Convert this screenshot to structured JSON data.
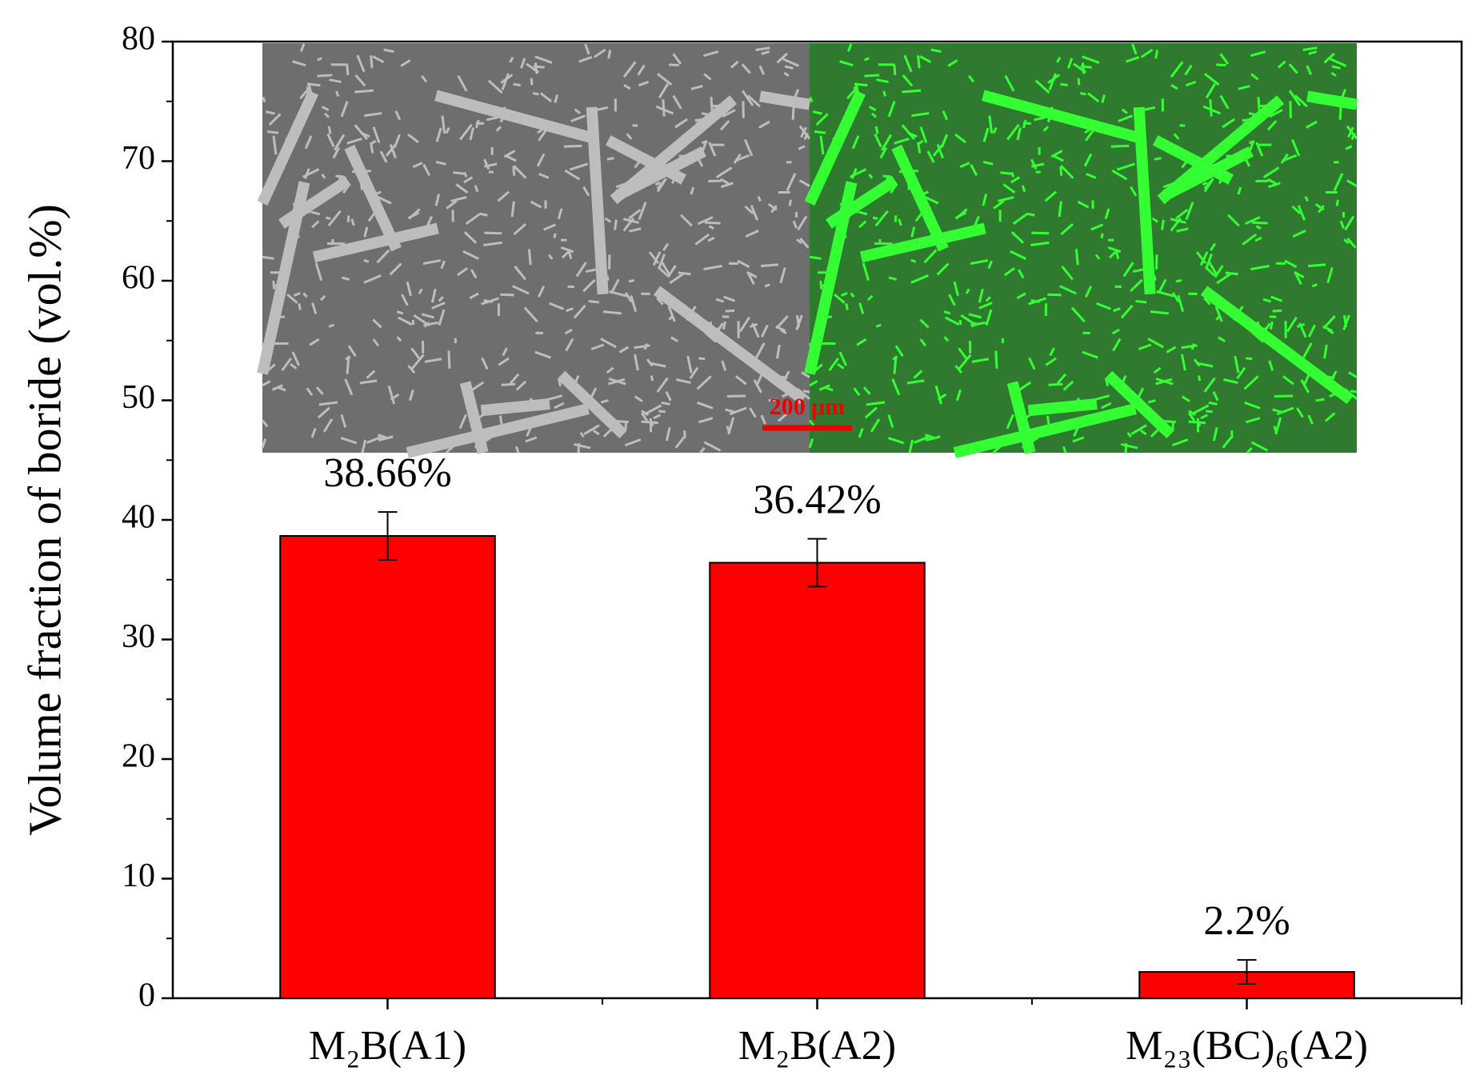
{
  "chart_data": {
    "type": "bar",
    "ylabel": "Volume fraction of boride (vol.%)",
    "categories": [
      "M₂B(A1)",
      "M₂B(A2)",
      "M₂₃(BC)₆(A2)"
    ],
    "values": [
      38.66,
      36.42,
      2.2
    ],
    "value_labels": [
      "38.66%",
      "36.42%",
      "2.2%"
    ],
    "errors": [
      2,
      2,
      1
    ],
    "color": "#ff0000",
    "ylim": [
      0,
      80
    ],
    "yticks": [
      0,
      10,
      20,
      30,
      40,
      50,
      60,
      70,
      80
    ],
    "yticks_minor": [
      5,
      15,
      25,
      35,
      45,
      55,
      65,
      75
    ],
    "inset": {
      "scale_bar": "200 μm"
    }
  }
}
